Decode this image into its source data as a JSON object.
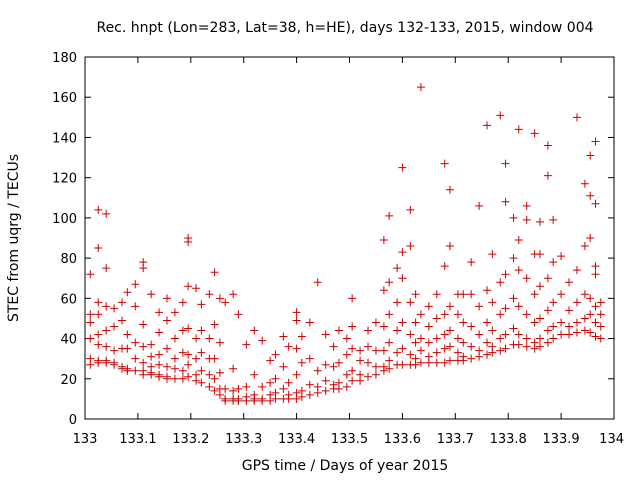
{
  "chart_data": {
    "type": "scatter",
    "title": "Rec. hnpt (Lon=283, Lat=38, h=HE), days 132-133, 2015, window 004",
    "xlabel": "GPS time / Days of year 2015",
    "ylabel": "STEC from uqrg / TECUs",
    "xlim": [
      133,
      134
    ],
    "ylim": [
      0,
      180
    ],
    "xticks": [
      133,
      133.1,
      133.2,
      133.3,
      133.4,
      133.5,
      133.6,
      133.7,
      133.8,
      133.9,
      134
    ],
    "xtick_labels": [
      "133",
      "133.1",
      "133.2",
      "133.3",
      "133.4",
      "133.5",
      "133.6",
      "133.7",
      "133.8",
      "133.9",
      "134"
    ],
    "yticks": [
      0,
      20,
      40,
      60,
      80,
      100,
      120,
      140,
      160,
      180
    ],
    "ytick_labels": [
      "0",
      "20",
      "40",
      "60",
      "80",
      "100",
      "120",
      "140",
      "160",
      "180"
    ],
    "grid": false,
    "marker": "plus",
    "color": "#cc0000",
    "points": [
      [
        133.01,
        72
      ],
      [
        133.01,
        52
      ],
      [
        133.01,
        48
      ],
      [
        133.01,
        40
      ],
      [
        133.01,
        30
      ],
      [
        133.01,
        27
      ],
      [
        133.025,
        104
      ],
      [
        133.025,
        85
      ],
      [
        133.025,
        58
      ],
      [
        133.025,
        52
      ],
      [
        133.025,
        42
      ],
      [
        133.025,
        37
      ],
      [
        133.025,
        29
      ],
      [
        133.025,
        28
      ],
      [
        133.04,
        102
      ],
      [
        133.04,
        75
      ],
      [
        133.04,
        56
      ],
      [
        133.04,
        44
      ],
      [
        133.04,
        36
      ],
      [
        133.04,
        29
      ],
      [
        133.04,
        28
      ],
      [
        133.055,
        55
      ],
      [
        133.055,
        46
      ],
      [
        133.055,
        34
      ],
      [
        133.055,
        28
      ],
      [
        133.055,
        27
      ],
      [
        133.07,
        58
      ],
      [
        133.07,
        49
      ],
      [
        133.07,
        35
      ],
      [
        133.07,
        26
      ],
      [
        133.07,
        25
      ],
      [
        133.08,
        63
      ],
      [
        133.08,
        42
      ],
      [
        133.08,
        35
      ],
      [
        133.08,
        25
      ],
      [
        133.08,
        24
      ],
      [
        133.095,
        67
      ],
      [
        133.095,
        56
      ],
      [
        133.095,
        38
      ],
      [
        133.095,
        30
      ],
      [
        133.095,
        24
      ],
      [
        133.11,
        78
      ],
      [
        133.11,
        75
      ],
      [
        133.11,
        47
      ],
      [
        133.11,
        36
      ],
      [
        133.11,
        28
      ],
      [
        133.11,
        24
      ],
      [
        133.11,
        22
      ],
      [
        133.125,
        62
      ],
      [
        133.125,
        37
      ],
      [
        133.125,
        31
      ],
      [
        133.125,
        26
      ],
      [
        133.125,
        23
      ],
      [
        133.125,
        22
      ],
      [
        133.14,
        53
      ],
      [
        133.14,
        43
      ],
      [
        133.14,
        32
      ],
      [
        133.14,
        27
      ],
      [
        133.14,
        22
      ],
      [
        133.14,
        21
      ],
      [
        133.155,
        60
      ],
      [
        133.155,
        49
      ],
      [
        133.155,
        35
      ],
      [
        133.155,
        26
      ],
      [
        133.155,
        21
      ],
      [
        133.155,
        20
      ],
      [
        133.17,
        53
      ],
      [
        133.17,
        40
      ],
      [
        133.17,
        30
      ],
      [
        133.17,
        25
      ],
      [
        133.17,
        20
      ],
      [
        133.185,
        58
      ],
      [
        133.185,
        44
      ],
      [
        133.185,
        33
      ],
      [
        133.185,
        24
      ],
      [
        133.185,
        20
      ],
      [
        133.195,
        90
      ],
      [
        133.195,
        88
      ],
      [
        133.195,
        66
      ],
      [
        133.195,
        45
      ],
      [
        133.195,
        32
      ],
      [
        133.195,
        27
      ],
      [
        133.195,
        21
      ],
      [
        133.21,
        65
      ],
      [
        133.21,
        40
      ],
      [
        133.21,
        30
      ],
      [
        133.21,
        22
      ],
      [
        133.21,
        19
      ],
      [
        133.22,
        57
      ],
      [
        133.22,
        44
      ],
      [
        133.22,
        33
      ],
      [
        133.22,
        24
      ],
      [
        133.22,
        18
      ],
      [
        133.235,
        62
      ],
      [
        133.235,
        40
      ],
      [
        133.235,
        30
      ],
      [
        133.235,
        22
      ],
      [
        133.235,
        16
      ],
      [
        133.245,
        73
      ],
      [
        133.245,
        47
      ],
      [
        133.245,
        30
      ],
      [
        133.245,
        20
      ],
      [
        133.245,
        14
      ],
      [
        133.255,
        60
      ],
      [
        133.255,
        38
      ],
      [
        133.255,
        23
      ],
      [
        133.255,
        15
      ],
      [
        133.255,
        12
      ],
      [
        133.265,
        58
      ],
      [
        133.265,
        15
      ],
      [
        133.265,
        10
      ],
      [
        133.265,
        9
      ],
      [
        133.28,
        62
      ],
      [
        133.28,
        25
      ],
      [
        133.28,
        14
      ],
      [
        133.28,
        10
      ],
      [
        133.28,
        9
      ],
      [
        133.29,
        52
      ],
      [
        133.29,
        15
      ],
      [
        133.29,
        10
      ],
      [
        133.29,
        9
      ],
      [
        133.305,
        37
      ],
      [
        133.305,
        16
      ],
      [
        133.305,
        11
      ],
      [
        133.305,
        9
      ],
      [
        133.32,
        44
      ],
      [
        133.32,
        22
      ],
      [
        133.32,
        12
      ],
      [
        133.32,
        10
      ],
      [
        133.32,
        9
      ],
      [
        133.335,
        39
      ],
      [
        133.335,
        16
      ],
      [
        133.335,
        10
      ],
      [
        133.335,
        9
      ],
      [
        133.35,
        29
      ],
      [
        133.35,
        18
      ],
      [
        133.35,
        12
      ],
      [
        133.35,
        9
      ],
      [
        133.36,
        32
      ],
      [
        133.36,
        20
      ],
      [
        133.36,
        13
      ],
      [
        133.36,
        10
      ],
      [
        133.375,
        41
      ],
      [
        133.375,
        26
      ],
      [
        133.375,
        15
      ],
      [
        133.375,
        10
      ],
      [
        133.385,
        36
      ],
      [
        133.385,
        18
      ],
      [
        133.385,
        12
      ],
      [
        133.385,
        10
      ],
      [
        133.4,
        53
      ],
      [
        133.4,
        49
      ],
      [
        133.4,
        35
      ],
      [
        133.4,
        22
      ],
      [
        133.4,
        13
      ],
      [
        133.4,
        10
      ],
      [
        133.41,
        41
      ],
      [
        133.41,
        28
      ],
      [
        133.41,
        14
      ],
      [
        133.41,
        11
      ],
      [
        133.425,
        48
      ],
      [
        133.425,
        30
      ],
      [
        133.425,
        17
      ],
      [
        133.425,
        12
      ],
      [
        133.44,
        68
      ],
      [
        133.44,
        24
      ],
      [
        133.44,
        16
      ],
      [
        133.44,
        13
      ],
      [
        133.455,
        42
      ],
      [
        133.455,
        27
      ],
      [
        133.455,
        19
      ],
      [
        133.455,
        14
      ],
      [
        133.47,
        36
      ],
      [
        133.47,
        26
      ],
      [
        133.47,
        17
      ],
      [
        133.47,
        15
      ],
      [
        133.48,
        44
      ],
      [
        133.48,
        28
      ],
      [
        133.48,
        18
      ],
      [
        133.48,
        15
      ],
      [
        133.495,
        40
      ],
      [
        133.495,
        32
      ],
      [
        133.495,
        22
      ],
      [
        133.495,
        16
      ],
      [
        133.505,
        60
      ],
      [
        133.505,
        46
      ],
      [
        133.505,
        35
      ],
      [
        133.505,
        24
      ],
      [
        133.505,
        19
      ],
      [
        133.52,
        34
      ],
      [
        133.52,
        29
      ],
      [
        133.52,
        22
      ],
      [
        133.52,
        19
      ],
      [
        133.535,
        44
      ],
      [
        133.535,
        36
      ],
      [
        133.535,
        28
      ],
      [
        133.535,
        21
      ],
      [
        133.55,
        48
      ],
      [
        133.55,
        34
      ],
      [
        133.55,
        26
      ],
      [
        133.55,
        22
      ],
      [
        133.565,
        89
      ],
      [
        133.565,
        64
      ],
      [
        133.565,
        46
      ],
      [
        133.565,
        34
      ],
      [
        133.565,
        26
      ],
      [
        133.565,
        24
      ],
      [
        133.575,
        101
      ],
      [
        133.575,
        68
      ],
      [
        133.575,
        52
      ],
      [
        133.575,
        38
      ],
      [
        133.575,
        29
      ],
      [
        133.575,
        25
      ],
      [
        133.59,
        75
      ],
      [
        133.59,
        58
      ],
      [
        133.59,
        44
      ],
      [
        133.59,
        33
      ],
      [
        133.59,
        27
      ],
      [
        133.6,
        125
      ],
      [
        133.6,
        83
      ],
      [
        133.6,
        70
      ],
      [
        133.6,
        48
      ],
      [
        133.6,
        35
      ],
      [
        133.6,
        27
      ],
      [
        133.615,
        104
      ],
      [
        133.615,
        86
      ],
      [
        133.615,
        58
      ],
      [
        133.615,
        42
      ],
      [
        133.615,
        32
      ],
      [
        133.615,
        27
      ],
      [
        133.625,
        62
      ],
      [
        133.625,
        48
      ],
      [
        133.625,
        38
      ],
      [
        133.625,
        30
      ],
      [
        133.625,
        27
      ],
      [
        133.635,
        165
      ],
      [
        133.635,
        52
      ],
      [
        133.635,
        40
      ],
      [
        133.635,
        34
      ],
      [
        133.635,
        28
      ],
      [
        133.65,
        56
      ],
      [
        133.65,
        46
      ],
      [
        133.65,
        38
      ],
      [
        133.65,
        31
      ],
      [
        133.65,
        28
      ],
      [
        133.665,
        62
      ],
      [
        133.665,
        50
      ],
      [
        133.665,
        40
      ],
      [
        133.665,
        33
      ],
      [
        133.665,
        28
      ],
      [
        133.68,
        127
      ],
      [
        133.68,
        76
      ],
      [
        133.68,
        52
      ],
      [
        133.68,
        42
      ],
      [
        133.68,
        35
      ],
      [
        133.68,
        28
      ],
      [
        133.69,
        114
      ],
      [
        133.69,
        86
      ],
      [
        133.69,
        56
      ],
      [
        133.69,
        44
      ],
      [
        133.69,
        36
      ],
      [
        133.69,
        29
      ],
      [
        133.705,
        62
      ],
      [
        133.705,
        52
      ],
      [
        133.705,
        40
      ],
      [
        133.705,
        33
      ],
      [
        133.705,
        29
      ],
      [
        133.715,
        62
      ],
      [
        133.715,
        48
      ],
      [
        133.715,
        38
      ],
      [
        133.715,
        31
      ],
      [
        133.715,
        29
      ],
      [
        133.73,
        78
      ],
      [
        133.73,
        62
      ],
      [
        133.73,
        46
      ],
      [
        133.73,
        36
      ],
      [
        133.73,
        30
      ],
      [
        133.745,
        106
      ],
      [
        133.745,
        56
      ],
      [
        133.745,
        42
      ],
      [
        133.745,
        34
      ],
      [
        133.745,
        31
      ],
      [
        133.76,
        146
      ],
      [
        133.76,
        64
      ],
      [
        133.76,
        48
      ],
      [
        133.76,
        38
      ],
      [
        133.76,
        32
      ],
      [
        133.77,
        82
      ],
      [
        133.77,
        58
      ],
      [
        133.77,
        44
      ],
      [
        133.77,
        36
      ],
      [
        133.77,
        33
      ],
      [
        133.785,
        151
      ],
      [
        133.785,
        68
      ],
      [
        133.785,
        52
      ],
      [
        133.785,
        40
      ],
      [
        133.785,
        34
      ],
      [
        133.795,
        108
      ],
      [
        133.795,
        127
      ],
      [
        133.795,
        72
      ],
      [
        133.795,
        55
      ],
      [
        133.795,
        42
      ],
      [
        133.795,
        35
      ],
      [
        133.81,
        100
      ],
      [
        133.81,
        80
      ],
      [
        133.81,
        60
      ],
      [
        133.81,
        45
      ],
      [
        133.81,
        37
      ],
      [
        133.82,
        144
      ],
      [
        133.82,
        89
      ],
      [
        133.82,
        74
      ],
      [
        133.82,
        56
      ],
      [
        133.82,
        42
      ],
      [
        133.82,
        37
      ],
      [
        133.835,
        99
      ],
      [
        133.835,
        106
      ],
      [
        133.835,
        70
      ],
      [
        133.835,
        52
      ],
      [
        133.835,
        40
      ],
      [
        133.835,
        36
      ],
      [
        133.85,
        142
      ],
      [
        133.85,
        82
      ],
      [
        133.85,
        62
      ],
      [
        133.85,
        48
      ],
      [
        133.85,
        38
      ],
      [
        133.85,
        35
      ],
      [
        133.86,
        98
      ],
      [
        133.86,
        82
      ],
      [
        133.86,
        66
      ],
      [
        133.86,
        50
      ],
      [
        133.86,
        40
      ],
      [
        133.86,
        36
      ],
      [
        133.875,
        121
      ],
      [
        133.875,
        136
      ],
      [
        133.875,
        70
      ],
      [
        133.875,
        54
      ],
      [
        133.875,
        44
      ],
      [
        133.875,
        38
      ],
      [
        133.885,
        99
      ],
      [
        133.885,
        78
      ],
      [
        133.885,
        58
      ],
      [
        133.885,
        46
      ],
      [
        133.885,
        40
      ],
      [
        133.9,
        81
      ],
      [
        133.9,
        62
      ],
      [
        133.9,
        48
      ],
      [
        133.9,
        42
      ],
      [
        133.915,
        68
      ],
      [
        133.915,
        54
      ],
      [
        133.915,
        46
      ],
      [
        133.915,
        42
      ],
      [
        133.93,
        150
      ],
      [
        133.93,
        74
      ],
      [
        133.93,
        58
      ],
      [
        133.93,
        48
      ],
      [
        133.93,
        43
      ],
      [
        133.945,
        117
      ],
      [
        133.945,
        86
      ],
      [
        133.945,
        62
      ],
      [
        133.945,
        50
      ],
      [
        133.945,
        44
      ],
      [
        133.955,
        131
      ],
      [
        133.955,
        111
      ],
      [
        133.955,
        90
      ],
      [
        133.955,
        60
      ],
      [
        133.955,
        52
      ],
      [
        133.955,
        43
      ],
      [
        133.965,
        107
      ],
      [
        133.965,
        138
      ],
      [
        133.965,
        76
      ],
      [
        133.965,
        72
      ],
      [
        133.965,
        56
      ],
      [
        133.965,
        48
      ],
      [
        133.965,
        41
      ],
      [
        133.975,
        58
      ],
      [
        133.975,
        52
      ],
      [
        133.975,
        46
      ],
      [
        133.975,
        40
      ]
    ]
  }
}
